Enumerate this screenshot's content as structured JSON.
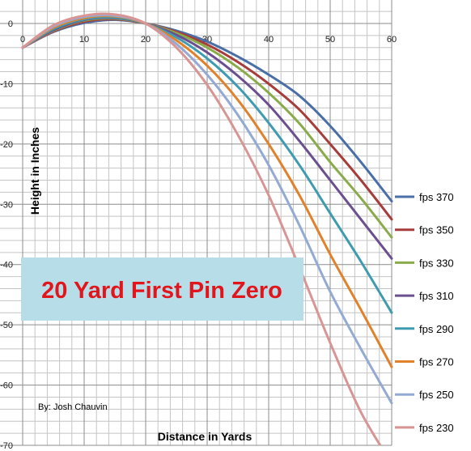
{
  "chart_data": {
    "type": "line",
    "xlabel": "Distance in Yards",
    "ylabel": "Height in Inches",
    "xlim": [
      0,
      60
    ],
    "ylim": [
      -70,
      3
    ],
    "x_ticks": [
      0,
      10,
      20,
      30,
      40,
      50,
      60
    ],
    "y_ticks": [
      0,
      -10,
      -20,
      -30,
      -40,
      -50,
      -60,
      -70
    ],
    "y_tick_labels": [
      "0",
      "-10",
      "-20",
      "-30",
      "-40",
      "-50",
      "-60",
      "-70"
    ],
    "grid": true,
    "legend_position": "right",
    "x": [
      0,
      5,
      10,
      15,
      20,
      25,
      30,
      35,
      40,
      45,
      50,
      55,
      60
    ],
    "series": [
      {
        "name": "fps 370",
        "color": "#4a6ea8",
        "values": [
          -4,
          -1.4,
          0.1,
          0.6,
          0,
          -1.2,
          -3,
          -5.5,
          -8.5,
          -12,
          -17,
          -23,
          -29.5
        ]
      },
      {
        "name": "fps 350",
        "color": "#a63d3b",
        "values": [
          -4,
          -1.3,
          0.3,
          0.7,
          0,
          -1.4,
          -3.5,
          -6.4,
          -10,
          -14.3,
          -20,
          -26,
          -32.5
        ]
      },
      {
        "name": "fps 330",
        "color": "#8aab4a",
        "values": [
          -4,
          -1.2,
          0.5,
          0.8,
          0,
          -1.6,
          -4,
          -7.3,
          -11.5,
          -16.6,
          -23,
          -29,
          -35.5
        ]
      },
      {
        "name": "fps 310",
        "color": "#6b4f8f",
        "values": [
          -4,
          -1.1,
          0.6,
          0.9,
          0,
          -1.9,
          -4.8,
          -8.7,
          -13.5,
          -19.5,
          -26,
          -32.5,
          -39
        ]
      },
      {
        "name": "fps 290",
        "color": "#3e9bb0",
        "values": [
          -4,
          -0.9,
          0.7,
          1,
          0,
          -2.3,
          -5.8,
          -10.5,
          -16.5,
          -23.5,
          -31.5,
          -39.5,
          -48
        ]
      },
      {
        "name": "fps 270",
        "color": "#e0822c",
        "values": [
          -4,
          -0.7,
          0.9,
          1.2,
          0,
          -2.8,
          -7,
          -12.7,
          -20,
          -28.5,
          -38.3,
          -47.5,
          -57
        ]
      },
      {
        "name": "fps 250",
        "color": "#93abd4",
        "values": [
          -4,
          -0.5,
          1.1,
          1.3,
          0,
          -3.4,
          -8.5,
          -15.2,
          -23.5,
          -33.5,
          -44.5,
          -54,
          -63
        ]
      },
      {
        "name": "fps 230",
        "color": "#d99494",
        "values": [
          -4,
          -0.3,
          1.3,
          1.5,
          0,
          -4,
          -10.2,
          -18.5,
          -28.5,
          -40.5,
          -53,
          -64.5,
          -73
        ]
      }
    ]
  },
  "annotations": {
    "banner": "20 Yard First Pin Zero",
    "byline": "By: Josh Chauvin"
  },
  "colors": {
    "banner_fill": "#b7dde8",
    "banner_text": "#e0161c",
    "grid_major": "#8c8c8c",
    "grid_minor": "#c4c4c4"
  }
}
